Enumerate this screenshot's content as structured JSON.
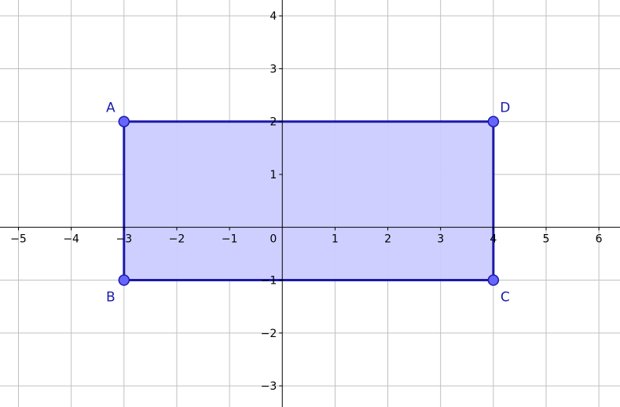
{
  "axes": {
    "x_range": [
      -5.35,
      6.4
    ],
    "y_range": [
      -3.4,
      4.3
    ],
    "x_ticks": [
      -5,
      -4,
      -3,
      -2,
      -1,
      0,
      1,
      2,
      3,
      4,
      5,
      6
    ],
    "y_ticks": [
      -3,
      -2,
      -1,
      1,
      2,
      3,
      4
    ],
    "grid": true,
    "origin_label": "0"
  },
  "polygon": {
    "fill": "#ccccff",
    "stroke": "#1a1aaa",
    "point_fill": "#6666ff",
    "label_color": "#1a1aaa",
    "vertices": [
      {
        "label": "A",
        "x": -3,
        "y": 2
      },
      {
        "label": "B",
        "x": -3,
        "y": -1
      },
      {
        "label": "C",
        "x": 4,
        "y": -1
      },
      {
        "label": "D",
        "x": 4,
        "y": 2
      }
    ]
  }
}
